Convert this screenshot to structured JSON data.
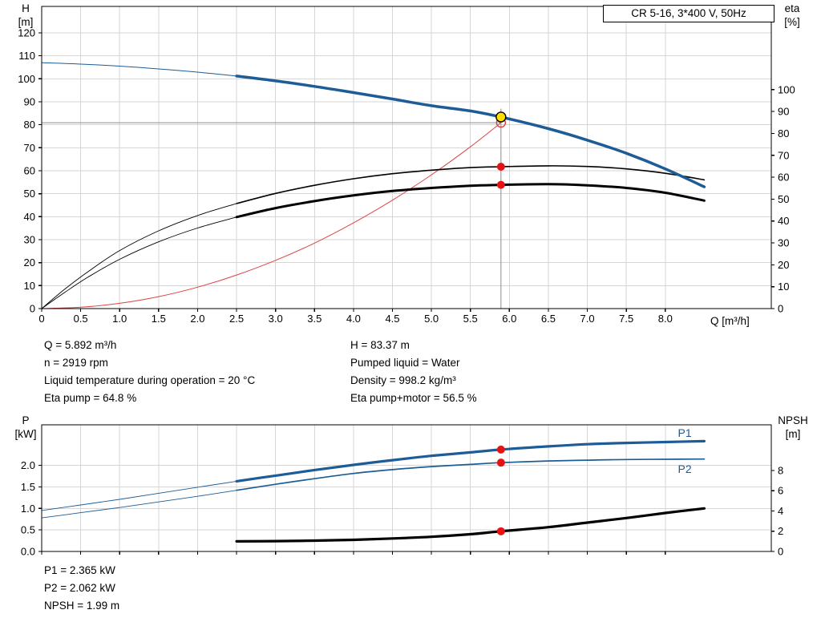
{
  "details": {
    "top_left": [
      "Q = 5.892 m³/h",
      "n = 2919 rpm",
      "Liquid temperature during operation = 20 °C",
      "Eta pump = 64.8 %"
    ],
    "top_right": [
      "H = 83.37 m",
      "Pumped liquid = Water",
      "Density = 998.2 kg/m³",
      "Eta pump+motor = 56.5 %"
    ],
    "bottom": [
      "P1 = 2.365 kW",
      "P2 = 2.062 kW",
      "NPSH = 1.99 m"
    ]
  },
  "colors": {
    "curve_blue": "#1d5c96",
    "curve_black": "#000000",
    "system_red": "#dd4444",
    "marker_red": "#e51414",
    "duty_yellow": "#ffdf00",
    "crosshair_gray": "#8c8c8c"
  },
  "chart_data": [
    {
      "type": "line",
      "title": "CR 5-16, 3*400 V, 50Hz",
      "x": {
        "label": "Q [m³/h]",
        "min": 0,
        "max": 9.36,
        "tick_values": [
          0,
          0.5,
          1,
          1.5,
          2,
          2.5,
          3,
          3.5,
          4,
          4.5,
          5,
          5.5,
          6,
          6.5,
          7,
          7.5,
          8
        ],
        "tick_labels": [
          "0",
          "0.5",
          "1.0",
          "1.5",
          "2.0",
          "2.5",
          "3.0",
          "3.5",
          "4.0",
          "4.5",
          "5.0",
          "5.5",
          "6.0",
          "6.5",
          "7.0",
          "7.5",
          "8.0"
        ]
      },
      "y_left": {
        "title_lines": [
          "H",
          "[m]"
        ],
        "min": 0,
        "max": 131.5,
        "tick_values": [
          0,
          10,
          20,
          30,
          40,
          50,
          60,
          70,
          80,
          90,
          100,
          110,
          120
        ],
        "tick_labels": [
          "0",
          "10",
          "20",
          "30",
          "40",
          "50",
          "60",
          "70",
          "80",
          "90",
          "100",
          "110",
          "120"
        ]
      },
      "y_right": {
        "title_lines": [
          "eta",
          "[%]"
        ],
        "min": 0,
        "max": 138,
        "tick_values": [
          0,
          10,
          20,
          30,
          40,
          50,
          60,
          70,
          80,
          90,
          100
        ],
        "tick_labels": [
          "0",
          "10",
          "20",
          "30",
          "40",
          "50",
          "60",
          "70",
          "80",
          "90",
          "100"
        ]
      },
      "grid": true,
      "crosshair": {
        "x": 5.892,
        "y": 80.9,
        "v_top": 87,
        "color": "#8c8c8c"
      },
      "series": [
        {
          "name": "system-curve",
          "axis": "left",
          "color": "#dd4444",
          "width": 1,
          "points": [
            [
              0,
              0
            ],
            [
              0.5,
              0.6
            ],
            [
              1,
              2.3
            ],
            [
              1.5,
              5.2
            ],
            [
              2,
              9.3
            ],
            [
              2.5,
              14.6
            ],
            [
              3,
              21
            ],
            [
              3.5,
              28.5
            ],
            [
              4,
              37.3
            ],
            [
              4.5,
              47.2
            ],
            [
              5,
              58.2
            ],
            [
              5.5,
              70.4
            ],
            [
              5.892,
              80.9
            ]
          ]
        },
        {
          "name": "eta-pump-curve",
          "axis": "right",
          "color": "#000000",
          "width": 1.6,
          "thin_width": 0.9,
          "split": 2.5,
          "points": [
            [
              0,
              0
            ],
            [
              0.3,
              9
            ],
            [
              0.6,
              17
            ],
            [
              1,
              26.5
            ],
            [
              1.5,
              35.5
            ],
            [
              2,
              42.5
            ],
            [
              2.5,
              48
            ],
            [
              3,
              52.6
            ],
            [
              3.5,
              56.3
            ],
            [
              4,
              59.3
            ],
            [
              4.5,
              61.6
            ],
            [
              5,
              63.2
            ],
            [
              5.5,
              64.4
            ],
            [
              5.892,
              64.8
            ],
            [
              6.5,
              65.2
            ],
            [
              7,
              64.9
            ],
            [
              7.5,
              63.8
            ],
            [
              8,
              61.8
            ],
            [
              8.5,
              58.8
            ]
          ]
        },
        {
          "name": "eta-pump-motor-curve",
          "axis": "right",
          "color": "#000000",
          "width": 3,
          "thin_width": 0.9,
          "split": 2.5,
          "points": [
            [
              0,
              0
            ],
            [
              0.3,
              7.5
            ],
            [
              0.6,
              14.5
            ],
            [
              1,
              22.5
            ],
            [
              1.5,
              30.5
            ],
            [
              2,
              36.8
            ],
            [
              2.5,
              41.8
            ],
            [
              3,
              45.9
            ],
            [
              3.5,
              49.1
            ],
            [
              4,
              51.7
            ],
            [
              4.5,
              53.7
            ],
            [
              5,
              55.1
            ],
            [
              5.5,
              56.1
            ],
            [
              5.892,
              56.5
            ],
            [
              6.5,
              56.8
            ],
            [
              7,
              56.3
            ],
            [
              7.5,
              55.1
            ],
            [
              8,
              52.9
            ],
            [
              8.5,
              49.3
            ]
          ]
        },
        {
          "name": "head-curve",
          "axis": "left",
          "color": "#1d5c96",
          "width": 3.5,
          "thin_width": 1,
          "split": 2.5,
          "points": [
            [
              0,
              107
            ],
            [
              0.5,
              106.4
            ],
            [
              1,
              105.5
            ],
            [
              1.5,
              104.3
            ],
            [
              2,
              102.9
            ],
            [
              2.5,
              101.2
            ],
            [
              3,
              99.1
            ],
            [
              3.5,
              96.7
            ],
            [
              4,
              94
            ],
            [
              4.5,
              91.2
            ],
            [
              5,
              88.3
            ],
            [
              5.5,
              86
            ],
            [
              5.892,
              83.37
            ],
            [
              6.5,
              78.3
            ],
            [
              7,
              73.3
            ],
            [
              7.5,
              67.6
            ],
            [
              8,
              60.8
            ],
            [
              8.5,
              53
            ]
          ]
        }
      ],
      "markers": [
        {
          "name": "requested-duty-point",
          "x": 5.892,
          "y": 80.9,
          "axis": "left",
          "r": 5.5,
          "fill": "none",
          "stroke": "#e04040",
          "stroke_width": 1.4
        },
        {
          "name": "duty-point",
          "x": 5.892,
          "y": 83.37,
          "axis": "left",
          "r": 6,
          "fill": "#ffdf00",
          "stroke": "#000000",
          "stroke_width": 1.4
        },
        {
          "name": "eta-pump-point",
          "x": 5.892,
          "y": 64.8,
          "axis": "right",
          "r": 5,
          "fill": "#e51414"
        },
        {
          "name": "eta-pump-motor-point",
          "x": 5.892,
          "y": 56.5,
          "axis": "right",
          "r": 5,
          "fill": "#e51414"
        }
      ]
    },
    {
      "type": "line",
      "title": "",
      "x": {
        "label": "",
        "min": 0,
        "max": 9.36,
        "tick_values": [
          0,
          0.5,
          1,
          1.5,
          2,
          2.5,
          3,
          3.5,
          4,
          4.5,
          5,
          5.5,
          6,
          6.5,
          7,
          7.5,
          8
        ],
        "tick_labels": null
      },
      "y_left": {
        "title_lines": [
          "P",
          "[kW]"
        ],
        "min": 0,
        "max": 2.94,
        "tick_values": [
          0,
          0.5,
          1,
          1.5,
          2
        ],
        "tick_labels": [
          "0.0",
          "0.5",
          "1.0",
          "1.5",
          "2.0"
        ]
      },
      "y_right": {
        "title_lines": [
          "NPSH",
          "[m]"
        ],
        "min": 0,
        "max": 12.5,
        "tick_values": [
          0,
          2,
          4,
          6,
          8
        ],
        "tick_labels": [
          "0",
          "2",
          "4",
          "6",
          "8"
        ]
      },
      "grid": true,
      "series": [
        {
          "name": "p2-curve",
          "axis": "left",
          "color": "#1d5c96",
          "width": 1.7,
          "thin_width": 0.9,
          "split": 2.5,
          "points": [
            [
              0,
              0.78
            ],
            [
              0.5,
              0.9
            ],
            [
              1,
              1.02
            ],
            [
              1.5,
              1.15
            ],
            [
              2,
              1.28
            ],
            [
              2.5,
              1.42
            ],
            [
              3,
              1.56
            ],
            [
              3.5,
              1.69
            ],
            [
              4,
              1.81
            ],
            [
              4.5,
              1.9
            ],
            [
              5,
              1.97
            ],
            [
              5.5,
              2.02
            ],
            [
              5.892,
              2.062
            ],
            [
              6.5,
              2.1
            ],
            [
              7,
              2.12
            ],
            [
              7.5,
              2.135
            ],
            [
              8,
              2.14
            ],
            [
              8.5,
              2.145
            ]
          ]
        },
        {
          "name": "p1-curve",
          "axis": "left",
          "color": "#1d5c96",
          "width": 3.2,
          "thin_width": 0.9,
          "split": 2.5,
          "points": [
            [
              0,
              0.95
            ],
            [
              0.5,
              1.08
            ],
            [
              1,
              1.21
            ],
            [
              1.5,
              1.35
            ],
            [
              2,
              1.49
            ],
            [
              2.5,
              1.63
            ],
            [
              3,
              1.76
            ],
            [
              3.5,
              1.89
            ],
            [
              4,
              2.01
            ],
            [
              4.5,
              2.12
            ],
            [
              5,
              2.22
            ],
            [
              5.5,
              2.3
            ],
            [
              5.892,
              2.365
            ],
            [
              6.5,
              2.44
            ],
            [
              7,
              2.49
            ],
            [
              7.5,
              2.52
            ],
            [
              8,
              2.54
            ],
            [
              8.5,
              2.56
            ]
          ]
        },
        {
          "name": "npsh-curve",
          "axis": "right",
          "color": "#000000",
          "width": 3.2,
          "points": [
            [
              2.5,
              1
            ],
            [
              3,
              1.02
            ],
            [
              3.5,
              1.07
            ],
            [
              4,
              1.15
            ],
            [
              4.5,
              1.28
            ],
            [
              5,
              1.45
            ],
            [
              5.5,
              1.7
            ],
            [
              5.892,
              1.99
            ],
            [
              6.5,
              2.4
            ],
            [
              7,
              2.85
            ],
            [
              7.5,
              3.3
            ],
            [
              8,
              3.8
            ],
            [
              8.5,
              4.25
            ]
          ]
        }
      ],
      "markers": [
        {
          "name": "p1-point",
          "x": 5.892,
          "y": 2.365,
          "axis": "left",
          "r": 5,
          "fill": "#e51414"
        },
        {
          "name": "p2-point",
          "x": 5.892,
          "y": 2.062,
          "axis": "left",
          "r": 5,
          "fill": "#e51414"
        },
        {
          "name": "npsh-point",
          "x": 5.892,
          "y": 1.99,
          "axis": "right",
          "r": 5,
          "fill": "#e51414"
        }
      ],
      "annotations": [
        {
          "text": "P1",
          "x": 8.25,
          "y": 2.66,
          "axis": "left",
          "color": "#1d5c96"
        },
        {
          "text": "P2",
          "x": 8.25,
          "y": 1.82,
          "axis": "left",
          "color": "#1d5c96"
        }
      ]
    }
  ]
}
